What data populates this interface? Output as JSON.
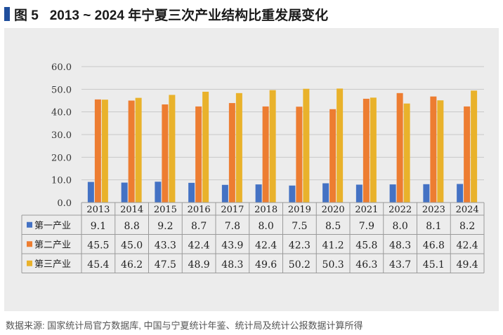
{
  "title": {
    "fig_label": "图 5",
    "text": "2013 ~ 2024 年宁夏三次产业结构比重发展变化"
  },
  "source": "数据来源: 国家统计局官方数据库, 中国与宁夏统计年鉴、统计局及统计公报数据计算所得",
  "colors": {
    "series1": "#4472c4",
    "series2": "#ed7d31",
    "series3": "#e9b22b",
    "title_mark": "#1f4e9c",
    "panel": "#ececec"
  },
  "chart_data": {
    "type": "bar",
    "title": "",
    "xlabel": "",
    "ylabel": "",
    "ylim": [
      0,
      60
    ],
    "y_ticks": [
      "0.0",
      "10.0",
      "20.0",
      "30.0",
      "40.0",
      "50.0",
      "60.0"
    ],
    "grid": true,
    "legend": "data-table",
    "categories": [
      "2013",
      "2014",
      "2015",
      "2016",
      "2017",
      "2018",
      "2019",
      "2020",
      "2021",
      "2022",
      "2023",
      "2024"
    ],
    "series": [
      {
        "name": "第一产业",
        "values": [
          9.1,
          8.8,
          9.2,
          8.7,
          7.8,
          8.0,
          7.5,
          8.5,
          7.9,
          8.0,
          8.1,
          8.2
        ],
        "labels": [
          "9.1",
          "8.8",
          "9.2",
          "8.7",
          "7.8",
          "8.0",
          "7.5",
          "8.5",
          "7.9",
          "8.0",
          "8.1",
          "8.2"
        ]
      },
      {
        "name": "第二产业",
        "values": [
          45.5,
          45.0,
          43.3,
          42.4,
          43.9,
          42.4,
          42.3,
          41.2,
          45.8,
          48.3,
          46.8,
          42.4
        ],
        "labels": [
          "45.5",
          "45.0",
          "43.3",
          "42.4",
          "43.9",
          "42.4",
          "42.3",
          "41.2",
          "45.8",
          "48.3",
          "46.8",
          "42.4"
        ]
      },
      {
        "name": "第三产业",
        "values": [
          45.4,
          46.2,
          47.5,
          48.9,
          48.3,
          49.6,
          50.2,
          50.3,
          46.3,
          43.7,
          45.1,
          49.4
        ],
        "labels": [
          "45.4",
          "46.2",
          "47.5",
          "48.9",
          "48.3",
          "49.6",
          "50.2",
          "50.3",
          "46.3",
          "43.7",
          "45.1",
          "49.4"
        ]
      }
    ]
  }
}
